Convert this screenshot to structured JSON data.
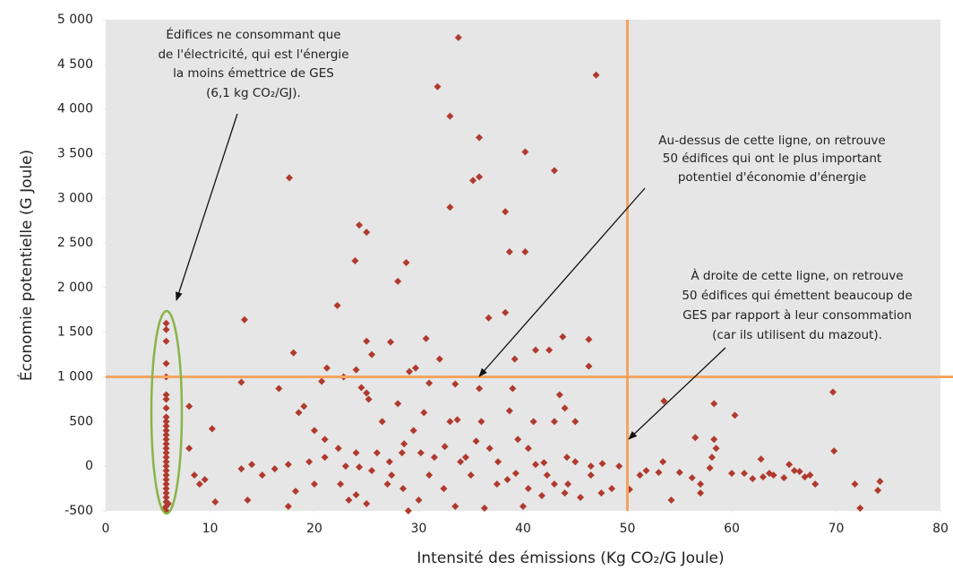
{
  "chart_data": {
    "type": "scatter",
    "x_label": "Intensité des émissions (Kg CO₂/G Joule)",
    "y_label": "Économie potentielle (G Joule)",
    "color": "#b03a2e",
    "xlim": [
      0,
      80
    ],
    "xticks": [
      0,
      10,
      20,
      30,
      40,
      50,
      60,
      70,
      80
    ],
    "ylim": [
      -500,
      5000
    ],
    "yticks": [
      -500,
      0,
      500,
      {
        "value": 1000,
        "label": "1 000"
      },
      {
        "value": 1500,
        "label": "1 500"
      },
      {
        "value": 2000,
        "label": "2 000"
      },
      {
        "value": 2500,
        "label": "2 500"
      },
      {
        "value": 3000,
        "label": "3 000"
      },
      {
        "value": 3500,
        "label": "3 500"
      },
      {
        "value": 4000,
        "label": "4 000"
      },
      {
        "value": 4500,
        "label": "4 500"
      },
      {
        "value": 5000,
        "label": "5 000"
      }
    ],
    "hlines": [
      1000
    ],
    "vlines": [
      50
    ],
    "annotations": [
      {
        "lines": [
          "Édifices ne consommant que",
          "de l'électricité, qui est l'énergie",
          "la moins émettrice de GES",
          "(6,1 kg CO₂/GJ)."
        ]
      },
      {
        "lines": [
          "Au-dessus de cette ligne, on retrouve",
          "50 édifices qui ont le plus important",
          "potentiel d'économie d'énergie"
        ]
      },
      {
        "lines": [
          "À droite de cette ligne, on retrouve",
          "50 édifices qui émettent beaucoup de",
          "GES par rapport à leur consommation",
          "(car ils utilisent du mazout)."
        ]
      }
    ],
    "x": [
      33.8,
      31.8,
      47,
      33,
      35.8,
      40.2,
      43,
      35.8,
      35.2,
      17.6,
      33,
      38.3,
      24.3,
      25,
      40.2,
      38.7,
      23.9,
      28.8,
      28,
      22.2,
      38.3,
      13.3,
      36.7,
      30.7,
      43.8,
      46.3,
      25,
      27.3,
      41.2,
      42.5,
      18,
      25.5,
      46.3,
      29.7,
      32,
      24,
      29.1,
      21.2,
      39.2,
      69.7,
      16.6,
      13,
      8,
      10.2,
      60.3,
      58.3,
      53.5,
      31,
      33.5,
      22.8,
      20.7,
      24.5,
      25,
      25.2,
      35.8,
      39,
      43.5,
      44,
      19,
      18.5,
      28,
      30.5,
      33,
      33.7,
      36,
      38.7,
      41,
      43,
      45,
      26.5,
      20,
      21,
      22.3,
      24,
      21,
      19.5,
      17.5,
      16.2,
      15,
      14,
      13,
      8,
      8.5,
      9,
      9.5,
      10.5,
      13.6,
      17.5,
      18.2,
      20,
      22.5,
      23.3,
      24,
      25,
      27,
      27.4,
      28.5,
      29,
      30,
      31,
      32.4,
      33.5,
      34,
      35,
      36.3,
      37.5,
      38.5,
      40,
      40.5,
      41.8,
      43,
      44,
      45.5,
      46.5,
      47.5,
      48.5,
      50.2,
      51.2,
      51.8,
      53,
      53.4,
      55,
      56.2,
      57,
      57.9,
      58.1,
      58.5,
      60,
      61.2,
      62,
      63,
      64,
      65,
      66,
      66.5,
      67,
      67.5,
      68,
      69.8,
      71.8,
      72.3,
      74.2,
      74,
      65.5,
      63.6,
      62.8,
      54.2,
      56.5,
      58.3,
      57,
      49.2,
      47.6,
      46.5,
      45,
      44.2,
      42,
      41.2,
      40.5,
      39.5,
      37.6,
      36.8,
      35.5,
      34.5,
      32.5,
      31.5,
      30.2,
      29.5,
      28.6,
      28.4,
      27.2,
      26,
      25.5,
      24.3,
      23,
      44.3,
      42.3,
      39.3,
      5.8,
      5.8,
      5.8,
      5.8,
      5.8,
      5.8,
      5.8,
      5.8,
      5.8,
      5.8,
      5.8,
      5.8,
      5.8,
      5.8,
      5.8,
      5.8,
      5.8,
      5.8,
      5.8,
      5.8,
      5.8,
      5.8,
      5.8,
      5.8,
      5.8,
      5.8,
      5.8,
      5.8,
      5.8,
      5.8,
      5.6,
      6
    ],
    "values": [
      4800,
      4250,
      4380,
      3920,
      3680,
      3520,
      3310,
      3240,
      3200,
      3230,
      2900,
      2850,
      2700,
      2620,
      2400,
      2400,
      2300,
      2280,
      2070,
      1800,
      1720,
      1640,
      1660,
      1430,
      1450,
      1420,
      1400,
      1390,
      1300,
      1300,
      1270,
      1250,
      1120,
      1100,
      1200,
      1080,
      1060,
      1100,
      1200,
      830,
      870,
      940,
      670,
      420,
      570,
      700,
      730,
      930,
      920,
      1000,
      950,
      880,
      820,
      750,
      870,
      870,
      800,
      650,
      670,
      600,
      700,
      600,
      500,
      520,
      500,
      620,
      500,
      500,
      500,
      500,
      400,
      300,
      200,
      150,
      100,
      50,
      20,
      -30,
      -100,
      20,
      -30,
      200,
      -100,
      -200,
      -150,
      -400,
      -380,
      -450,
      -280,
      -200,
      -200,
      -380,
      -320,
      -420,
      -200,
      -100,
      -250,
      -500,
      -380,
      -100,
      -250,
      -450,
      50,
      -100,
      -470,
      -200,
      -150,
      -450,
      -250,
      -330,
      -200,
      -300,
      -350,
      -100,
      -300,
      -250,
      -260,
      -100,
      -50,
      -70,
      50,
      -70,
      -130,
      -300,
      -20,
      100,
      200,
      -80,
      -80,
      -140,
      -120,
      -100,
      -130,
      -50,
      -60,
      -120,
      -100,
      -200,
      170,
      -200,
      -470,
      -170,
      -270,
      20,
      -80,
      80,
      -380,
      320,
      300,
      -200,
      0,
      30,
      0,
      50,
      100,
      40,
      20,
      200,
      300,
      50,
      200,
      280,
      100,
      220,
      100,
      150,
      400,
      250,
      150,
      50,
      150,
      -50,
      -10,
      0,
      -200,
      -100,
      -80,
      1600,
      1530,
      1400,
      1150,
      1000,
      800,
      750,
      650,
      550,
      500,
      450,
      400,
      350,
      300,
      250,
      200,
      150,
      100,
      50,
      0,
      -50,
      -100,
      -150,
      -200,
      -250,
      -300,
      -350,
      -400,
      -450,
      -500,
      -480,
      -420
    ]
  }
}
